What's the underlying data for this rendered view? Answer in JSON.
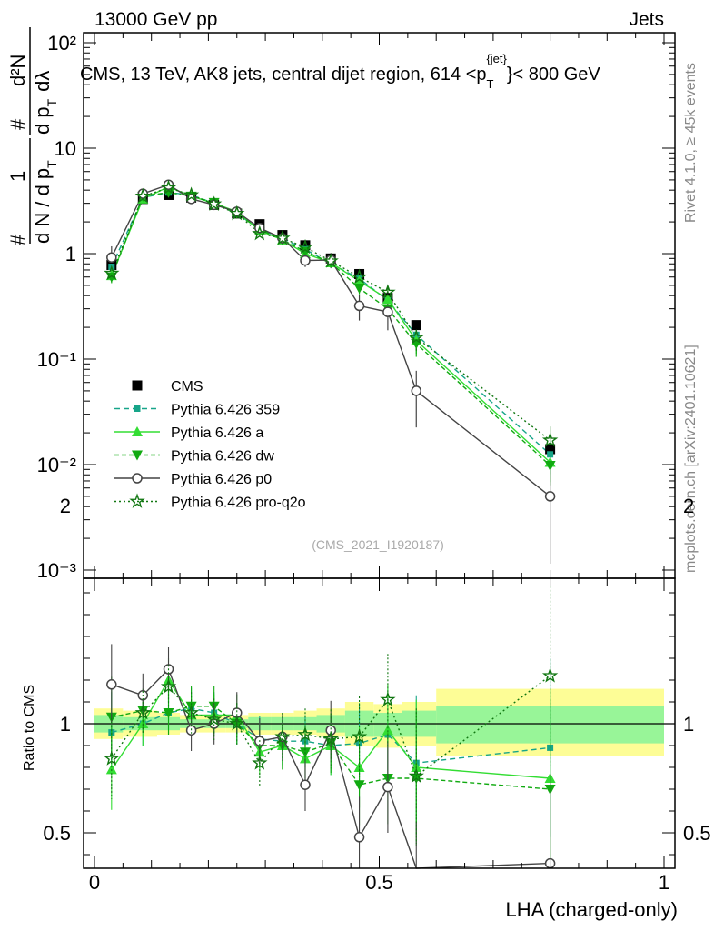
{
  "header": {
    "left": "13000 GeV pp",
    "right": "Jets",
    "title_main": "CMS, 13 TeV, AK8 jets, central dijet region, 614 <p",
    "title_sub": "T",
    "title_sup": "{jet}",
    "title_end": "}< 800 GeV"
  },
  "side_labels": {
    "rivet": "Rivet 4.1.0, ≥ 45k events",
    "mcplots": "mcplots.cern.ch [arXiv:2401.10621]"
  },
  "analysis_tag": "(CMS_2021_I1920187)",
  "y_axis_label": {
    "hash1": "#",
    "one": "1",
    "dN_dpT": "d N / d p",
    "sub_T": "T",
    "hash2": "#",
    "d2N": "d²N",
    "dpT_dlambda": "d p",
    "sub_T2": "T",
    "dlambda": "dλ"
  },
  "x_axis_label": "LHA (charged-only)",
  "ratio_ylabel": "Ratio to CMS",
  "colors": {
    "cms": "#000000",
    "p359": "#17a589",
    "pa": "#33dd33",
    "pdw": "#11aa11",
    "p0": "#444444",
    "pq2o": "#117711",
    "band_yellow": "#fdfd96",
    "band_green": "#98f598"
  },
  "legend": [
    {
      "key": "cms",
      "label": "CMS"
    },
    {
      "key": "p359",
      "label": "Pythia 6.426 359"
    },
    {
      "key": "pa",
      "label": "Pythia 6.426 a"
    },
    {
      "key": "pdw",
      "label": "Pythia 6.426 dw"
    },
    {
      "key": "p0",
      "label": "Pythia 6.426 p0"
    },
    {
      "key": "pq2o",
      "label": "Pythia 6.426 pro-q2o"
    }
  ],
  "chart_data": {
    "type": "line",
    "title": "CMS, 13 TeV, AK8 jets, central dijet region, 614 <pT{jet}< 800 GeV",
    "xlabel": "LHA (charged-only)",
    "ylabel": "1/(dN/dpT) d²N/(dpT dλ)",
    "xlim": [
      0,
      1
    ],
    "ylim": [
      0.001,
      150
    ],
    "yscale": "log",
    "x": [
      0.03,
      0.085,
      0.13,
      0.17,
      0.21,
      0.25,
      0.29,
      0.33,
      0.37,
      0.415,
      0.465,
      0.515,
      0.565,
      0.8
    ],
    "x_bins": [
      0,
      0.05,
      0.11,
      0.15,
      0.19,
      0.23,
      0.27,
      0.31,
      0.35,
      0.39,
      0.44,
      0.49,
      0.54,
      0.6,
      1.0
    ],
    "series": [
      {
        "name": "CMS",
        "key": "cms",
        "values": [
          0.78,
          3.3,
          3.6,
          3.4,
          2.9,
          2.4,
          1.9,
          1.5,
          1.2,
          0.9,
          0.64,
          0.38,
          0.21,
          0.014
        ]
      },
      {
        "name": "Pythia 6.426 359",
        "key": "p359",
        "values": [
          0.75,
          3.4,
          3.8,
          3.6,
          3.0,
          2.4,
          1.7,
          1.4,
          1.1,
          0.8,
          0.58,
          0.36,
          0.17,
          0.0125
        ]
      },
      {
        "name": "Pythia 6.426 a",
        "key": "pa",
        "values": [
          0.62,
          3.3,
          4.3,
          3.5,
          3.0,
          2.5,
          1.65,
          1.35,
          1.0,
          0.82,
          0.55,
          0.37,
          0.15,
          0.0105
        ]
      },
      {
        "name": "Pythia 6.426 dw",
        "key": "pdw",
        "values": [
          0.6,
          3.5,
          3.8,
          3.5,
          3.05,
          2.4,
          1.7,
          1.35,
          1.05,
          0.82,
          0.47,
          0.3,
          0.14,
          0.0098
        ]
      },
      {
        "name": "Pythia 6.426 p0",
        "key": "p0",
        "values": [
          0.92,
          3.7,
          4.5,
          3.3,
          2.9,
          2.5,
          1.75,
          1.4,
          0.86,
          0.87,
          0.32,
          0.28,
          0.05,
          0.005
        ]
      },
      {
        "name": "Pythia 6.426 pro-q2o",
        "key": "pq2o",
        "values": [
          0.65,
          3.5,
          4.2,
          3.6,
          2.95,
          2.4,
          1.55,
          1.4,
          1.15,
          0.85,
          0.6,
          0.43,
          0.16,
          0.017
        ]
      }
    ],
    "ratio": {
      "ylabel": "Ratio to CMS",
      "ylim": [
        0.35,
        2.3
      ],
      "yticks": [
        0.5,
        1,
        2
      ],
      "series": [
        {
          "key": "p359",
          "values": [
            0.96,
            1.0,
            1.05,
            1.07,
            1.05,
            1.0,
            0.93,
            0.92,
            0.92,
            0.9,
            0.91,
            0.95,
            0.82,
            0.89
          ]
        },
        {
          "key": "pa",
          "values": [
            0.79,
            1.0,
            1.2,
            1.04,
            1.04,
            1.04,
            0.87,
            0.9,
            0.84,
            0.9,
            0.8,
            0.97,
            0.8,
            0.75
          ]
        },
        {
          "key": "pdw",
          "values": [
            1.03,
            1.06,
            1.05,
            1.08,
            1.08,
            1.0,
            0.9,
            0.9,
            0.87,
            0.91,
            0.72,
            0.75,
            0.75,
            0.7
          ]
        },
        {
          "key": "p0",
          "values": [
            1.18,
            1.13,
            1.25,
            0.97,
            1.0,
            1.05,
            0.92,
            0.94,
            0.72,
            0.97,
            0.48,
            0.71,
            0.24,
            0.36
          ]
        },
        {
          "key": "pq2o",
          "values": [
            0.84,
            1.05,
            1.17,
            1.05,
            1.02,
            1.0,
            0.82,
            0.94,
            0.95,
            0.93,
            0.94,
            1.11,
            0.76,
            1.22
          ]
        }
      ],
      "band_yellow": [
        [
          0.93,
          1.07
        ],
        [
          0.94,
          1.06
        ],
        [
          0.95,
          1.05
        ],
        [
          0.96,
          1.04
        ],
        [
          0.96,
          1.04
        ],
        [
          0.96,
          1.04
        ],
        [
          0.95,
          1.05
        ],
        [
          0.95,
          1.05
        ],
        [
          0.95,
          1.06
        ],
        [
          0.94,
          1.07
        ],
        [
          0.9,
          1.1
        ],
        [
          0.89,
          1.09
        ],
        [
          0.9,
          1.1
        ],
        [
          0.85,
          1.16
        ]
      ],
      "band_green": [
        [
          0.96,
          1.04
        ],
        [
          0.97,
          1.03
        ],
        [
          0.97,
          1.03
        ],
        [
          0.98,
          1.02
        ],
        [
          0.98,
          1.02
        ],
        [
          0.98,
          1.02
        ],
        [
          0.97,
          1.03
        ],
        [
          0.97,
          1.03
        ],
        [
          0.97,
          1.03
        ],
        [
          0.96,
          1.04
        ],
        [
          0.94,
          1.06
        ],
        [
          0.94,
          1.05
        ],
        [
          0.94,
          1.06
        ],
        [
          0.91,
          1.08
        ]
      ]
    },
    "x_ticks": [
      "0",
      "0.5",
      "1"
    ],
    "y_ticks": [
      "10⁻³",
      "10⁻²",
      "10⁻¹",
      "1",
      "10",
      "10²"
    ]
  }
}
